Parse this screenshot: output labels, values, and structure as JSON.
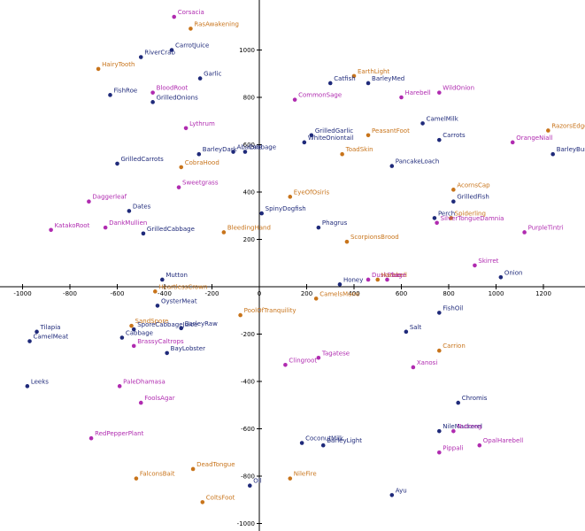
{
  "chart_data": {
    "type": "scatter",
    "title": "",
    "xlabel": "",
    "ylabel": "",
    "xlim": [
      -1000,
      1370
    ],
    "ylim": [
      -1000,
      1200
    ],
    "grid": false,
    "legend": "none",
    "x_ticks": [
      -1000,
      -800,
      -600,
      -400,
      -200,
      0,
      200,
      400,
      600,
      800,
      1000,
      1200
    ],
    "x_tick_labels": [
      "-1000",
      "-800",
      "-600",
      "-400",
      "-200",
      "0",
      "200",
      "400",
      "600",
      "800",
      "1000",
      "1200"
    ],
    "y_ticks": [
      -1000,
      -800,
      -600,
      -400,
      -200,
      200,
      400,
      600,
      800,
      1000
    ],
    "y_tick_labels": [
      "-1000",
      "-800",
      "-600",
      "-400",
      "-200",
      "200",
      "400",
      "600",
      "800",
      "1000"
    ],
    "colors": {
      "navy": "#1f2a7a",
      "orange": "#c8741b",
      "magenta": "#b02bb0",
      "axis": "#000000"
    },
    "points": [
      {
        "label": "Corsacia",
        "x": -360,
        "y": 1140,
        "color": "magenta"
      },
      {
        "label": "RasAwakening",
        "x": -290,
        "y": 1090,
        "color": "orange"
      },
      {
        "label": "CarrotJuice",
        "x": -370,
        "y": 1000,
        "color": "navy"
      },
      {
        "label": "RiverCrab",
        "x": -500,
        "y": 970,
        "color": "navy"
      },
      {
        "label": "HairyTooth",
        "x": -680,
        "y": 920,
        "color": "orange"
      },
      {
        "label": "Garlic",
        "x": -250,
        "y": 880,
        "color": "navy"
      },
      {
        "label": "BloodRoot",
        "x": -450,
        "y": 820,
        "color": "magenta"
      },
      {
        "label": "FishRoe",
        "x": -630,
        "y": 810,
        "color": "navy"
      },
      {
        "label": "GrilledOnions",
        "x": -450,
        "y": 780,
        "color": "navy"
      },
      {
        "label": "Lythrum",
        "x": -310,
        "y": 670,
        "color": "magenta"
      },
      {
        "label": "BarleyDark",
        "x": -255,
        "y": 560,
        "color": "navy"
      },
      {
        "label": "Abalone",
        "x": -110,
        "y": 570,
        "color": "navy"
      },
      {
        "label": "Cabbage",
        "x": -60,
        "y": 570,
        "color": "navy"
      },
      {
        "label": "GrilledCarrots",
        "x": -600,
        "y": 520,
        "color": "navy"
      },
      {
        "label": "CobraHood",
        "x": -330,
        "y": 505,
        "color": "orange"
      },
      {
        "label": "Sweetgrass",
        "x": -340,
        "y": 420,
        "color": "magenta"
      },
      {
        "label": "Daggerleaf",
        "x": -720,
        "y": 360,
        "color": "magenta"
      },
      {
        "label": "Dates",
        "x": -550,
        "y": 320,
        "color": "navy"
      },
      {
        "label": "KatakoRoot",
        "x": -880,
        "y": 240,
        "color": "magenta"
      },
      {
        "label": "DankMullien",
        "x": -650,
        "y": 250,
        "color": "magenta"
      },
      {
        "label": "GrilledCabbage",
        "x": -490,
        "y": 225,
        "color": "navy"
      },
      {
        "label": "BleedingHand",
        "x": -150,
        "y": 230,
        "color": "orange"
      },
      {
        "label": "Mutton",
        "x": -410,
        "y": 30,
        "color": "navy"
      },
      {
        "label": "HeartlessCrown",
        "x": -440,
        "y": -20,
        "color": "orange"
      },
      {
        "label": "OysterMeat",
        "x": -430,
        "y": -80,
        "color": "navy"
      },
      {
        "label": "PoolOfTranquility",
        "x": -80,
        "y": -120,
        "color": "orange"
      },
      {
        "label": "SandSpore",
        "x": -540,
        "y": -165,
        "color": "orange"
      },
      {
        "label": "SporeCabbageJuice",
        "x": -530,
        "y": -180,
        "color": "navy"
      },
      {
        "label": "BarleyRaw",
        "x": -330,
        "y": -175,
        "color": "navy"
      },
      {
        "label": "Tilapia",
        "x": -940,
        "y": -190,
        "color": "navy"
      },
      {
        "label": "Cabbage",
        "x": -580,
        "y": -215,
        "color": "navy"
      },
      {
        "label": "BrassyCaltrops",
        "x": -530,
        "y": -250,
        "color": "magenta"
      },
      {
        "label": "CamelMeat",
        "x": -970,
        "y": -230,
        "color": "navy"
      },
      {
        "label": "BayLobster",
        "x": -390,
        "y": -280,
        "color": "navy"
      },
      {
        "label": "Leeks",
        "x": -980,
        "y": -420,
        "color": "navy"
      },
      {
        "label": "PaleDhamasa",
        "x": -590,
        "y": -420,
        "color": "magenta"
      },
      {
        "label": "FoolsAgar",
        "x": -500,
        "y": -490,
        "color": "magenta"
      },
      {
        "label": "RedPepperPlant",
        "x": -710,
        "y": -640,
        "color": "magenta"
      },
      {
        "label": "DeadTongue",
        "x": -280,
        "y": -770,
        "color": "orange"
      },
      {
        "label": "FalconsBait",
        "x": -520,
        "y": -810,
        "color": "orange"
      },
      {
        "label": "Oil",
        "x": -40,
        "y": -840,
        "color": "navy"
      },
      {
        "label": "ColtsFoot",
        "x": -240,
        "y": -910,
        "color": "orange"
      },
      {
        "label": "EarthLight",
        "x": 400,
        "y": 890,
        "color": "orange"
      },
      {
        "label": "Catfish",
        "x": 300,
        "y": 860,
        "color": "navy"
      },
      {
        "label": "BarleyMed",
        "x": 460,
        "y": 860,
        "color": "navy"
      },
      {
        "label": "WildOnion",
        "x": 760,
        "y": 820,
        "color": "magenta"
      },
      {
        "label": "CommonSage",
        "x": 150,
        "y": 790,
        "color": "magenta"
      },
      {
        "label": "Harebell",
        "x": 600,
        "y": 800,
        "color": "magenta"
      },
      {
        "label": "CamelMilk",
        "x": 690,
        "y": 690,
        "color": "navy"
      },
      {
        "label": "RazorsEdge",
        "x": 1220,
        "y": 660,
        "color": "orange"
      },
      {
        "label": "GrilledGarlic",
        "x": 220,
        "y": 640,
        "color": "navy"
      },
      {
        "label": "PeasantFoot",
        "x": 460,
        "y": 640,
        "color": "orange"
      },
      {
        "label": "Carrots",
        "x": 760,
        "y": 620,
        "color": "navy"
      },
      {
        "label": "OrangeNiall",
        "x": 1070,
        "y": 610,
        "color": "magenta"
      },
      {
        "label": "WhiteOniontail",
        "x": 190,
        "y": 610,
        "color": "navy"
      },
      {
        "label": "ToadSkin",
        "x": 350,
        "y": 560,
        "color": "orange"
      },
      {
        "label": "BarleyBurnt",
        "x": 1240,
        "y": 560,
        "color": "navy"
      },
      {
        "label": "PancakeLoach",
        "x": 560,
        "y": 510,
        "color": "navy"
      },
      {
        "label": "AcornsCap",
        "x": 820,
        "y": 410,
        "color": "orange"
      },
      {
        "label": "EyeOfOsiris",
        "x": 130,
        "y": 380,
        "color": "orange"
      },
      {
        "label": "GrilledFish",
        "x": 820,
        "y": 360,
        "color": "navy"
      },
      {
        "label": "SpinyDogfish",
        "x": 10,
        "y": 310,
        "color": "navy"
      },
      {
        "label": "Perch",
        "x": 740,
        "y": 290,
        "color": "navy"
      },
      {
        "label": "Spiderling",
        "x": 810,
        "y": 290,
        "color": "orange"
      },
      {
        "label": "SilverTongueDamnia",
        "x": 750,
        "y": 270,
        "color": "magenta"
      },
      {
        "label": "Phagrus",
        "x": 250,
        "y": 250,
        "color": "navy"
      },
      {
        "label": "PurpleTintri",
        "x": 1120,
        "y": 230,
        "color": "magenta"
      },
      {
        "label": "ScorpionsBrood",
        "x": 370,
        "y": 190,
        "color": "orange"
      },
      {
        "label": "Skirret",
        "x": 910,
        "y": 90,
        "color": "magenta"
      },
      {
        "label": "Onion",
        "x": 1020,
        "y": 40,
        "color": "navy"
      },
      {
        "label": "DuskBlue",
        "x": 460,
        "y": 30,
        "color": "magenta"
      },
      {
        "label": "Harebell",
        "x": 500,
        "y": 30,
        "color": "orange"
      },
      {
        "label": "Sage",
        "x": 540,
        "y": 30,
        "color": "magenta"
      },
      {
        "label": "Honey",
        "x": 340,
        "y": 10,
        "color": "navy"
      },
      {
        "label": "CamelsMane",
        "x": 240,
        "y": -50,
        "color": "orange"
      },
      {
        "label": "FishOil",
        "x": 760,
        "y": -110,
        "color": "navy"
      },
      {
        "label": "Salt",
        "x": 620,
        "y": -190,
        "color": "navy"
      },
      {
        "label": "Carrion",
        "x": 760,
        "y": -270,
        "color": "orange"
      },
      {
        "label": "Tagatese",
        "x": 250,
        "y": -300,
        "color": "magenta"
      },
      {
        "label": "Clingroot",
        "x": 110,
        "y": -330,
        "color": "magenta"
      },
      {
        "label": "Xanosi",
        "x": 650,
        "y": -340,
        "color": "magenta"
      },
      {
        "label": "Chromis",
        "x": 840,
        "y": -490,
        "color": "navy"
      },
      {
        "label": "NileMackerel",
        "x": 760,
        "y": -610,
        "color": "navy"
      },
      {
        "label": "Nutmeg",
        "x": 820,
        "y": -610,
        "color": "magenta"
      },
      {
        "label": "OpalHarebell",
        "x": 930,
        "y": -670,
        "color": "magenta"
      },
      {
        "label": "Pippali",
        "x": 760,
        "y": -700,
        "color": "magenta"
      },
      {
        "label": "CoconutMilk",
        "x": 180,
        "y": -660,
        "color": "navy"
      },
      {
        "label": "BarleyLight",
        "x": 270,
        "y": -670,
        "color": "navy"
      },
      {
        "label": "NileFire",
        "x": 130,
        "y": -810,
        "color": "orange"
      },
      {
        "label": "Ayu",
        "x": 560,
        "y": -880,
        "color": "navy"
      }
    ]
  }
}
